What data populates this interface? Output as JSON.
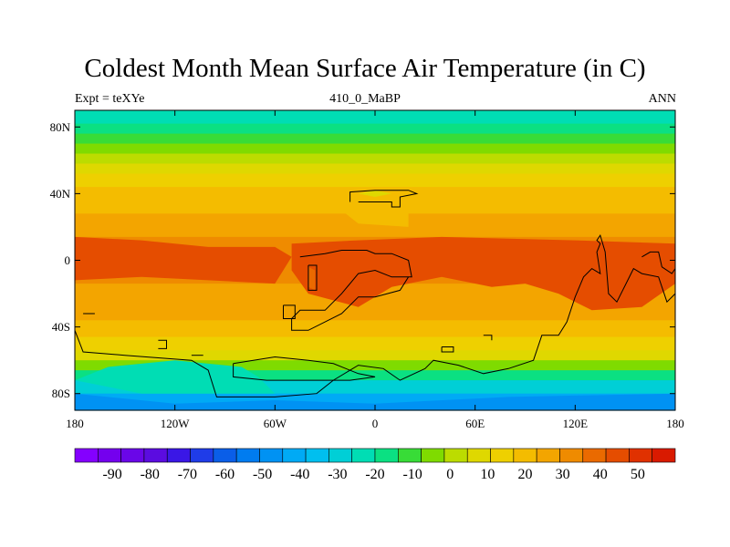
{
  "title": "Coldest Month Mean Surface Air Temperature (in C)",
  "subtitle_left": "Expt = teXYe",
  "subtitle_center": "410_0_MaBP",
  "subtitle_right": "ANN",
  "chart_data": {
    "type": "heatmap",
    "xlim": [
      -180,
      180
    ],
    "ylim": [
      -90,
      90
    ],
    "x_ticks": [
      {
        "value": -180,
        "label": "180"
      },
      {
        "value": -120,
        "label": "120W"
      },
      {
        "value": -60,
        "label": "60W"
      },
      {
        "value": 0,
        "label": "0"
      },
      {
        "value": 60,
        "label": "60E"
      },
      {
        "value": 120,
        "label": "120E"
      },
      {
        "value": 180,
        "label": "180"
      }
    ],
    "y_ticks": [
      {
        "value": 80,
        "label": "80N"
      },
      {
        "value": 40,
        "label": "40N"
      },
      {
        "value": 0,
        "label": "0"
      },
      {
        "value": -40,
        "label": "40S"
      },
      {
        "value": -80,
        "label": "80S"
      }
    ],
    "zonal_bands": [
      {
        "lat_top": 90,
        "lat_bottom": 82,
        "value": -22
      },
      {
        "lat_top": 82,
        "lat_bottom": 76,
        "value": -17
      },
      {
        "lat_top": 76,
        "lat_bottom": 70,
        "value": -12
      },
      {
        "lat_top": 70,
        "lat_bottom": 64,
        "value": -6
      },
      {
        "lat_top": 64,
        "lat_bottom": 58,
        "value": 0
      },
      {
        "lat_top": 58,
        "lat_bottom": 52,
        "value": 6
      },
      {
        "lat_top": 52,
        "lat_bottom": 44,
        "value": 12
      },
      {
        "lat_top": 44,
        "lat_bottom": 36,
        "value": 17
      },
      {
        "lat_top": 36,
        "lat_bottom": 28,
        "value": 22
      },
      {
        "lat_top": 28,
        "lat_bottom": 14,
        "value": 28
      },
      {
        "lat_top": 14,
        "lat_bottom": -14,
        "value": 33
      },
      {
        "lat_top": -14,
        "lat_bottom": -26,
        "value": 29
      },
      {
        "lat_top": -26,
        "lat_bottom": -36,
        "value": 24
      },
      {
        "lat_top": -36,
        "lat_bottom": -46,
        "value": 18
      },
      {
        "lat_top": -46,
        "lat_bottom": -54,
        "value": 12
      },
      {
        "lat_top": -54,
        "lat_bottom": -60,
        "value": 5
      },
      {
        "lat_top": -60,
        "lat_bottom": -66,
        "value": -5
      },
      {
        "lat_top": -66,
        "lat_bottom": -72,
        "value": -15
      },
      {
        "lat_top": -72,
        "lat_bottom": -80,
        "value": -28
      },
      {
        "lat_top": -80,
        "lat_bottom": -90,
        "value": -42
      }
    ],
    "regions": [
      {
        "value": 42,
        "polygon": [
          [
            -180,
            14
          ],
          [
            -140,
            12
          ],
          [
            -100,
            8
          ],
          [
            -60,
            8
          ],
          [
            -50,
            2
          ],
          [
            -60,
            -14
          ],
          [
            -100,
            -12
          ],
          [
            -140,
            -10
          ],
          [
            -180,
            -12
          ]
        ]
      },
      {
        "value": 42,
        "polygon": [
          [
            -50,
            10
          ],
          [
            -10,
            12
          ],
          [
            40,
            14
          ],
          [
            120,
            12
          ],
          [
            180,
            10
          ],
          [
            180,
            -14
          ],
          [
            160,
            -28
          ],
          [
            130,
            -30
          ],
          [
            110,
            -20
          ],
          [
            90,
            -14
          ],
          [
            70,
            -16
          ],
          [
            40,
            -10
          ],
          [
            10,
            -16
          ],
          [
            -10,
            -28
          ],
          [
            -40,
            -20
          ],
          [
            -50,
            -6
          ]
        ]
      },
      {
        "value": 38,
        "polygon": [
          [
            -40,
            -4
          ],
          [
            -36,
            -6
          ],
          [
            -36,
            -18
          ],
          [
            -40,
            -16
          ]
        ]
      },
      {
        "value": 18,
        "polygon": [
          [
            -20,
            30
          ],
          [
            0,
            32
          ],
          [
            20,
            28
          ],
          [
            20,
            20
          ],
          [
            -10,
            22
          ]
        ]
      },
      {
        "value": 6,
        "polygon": [
          [
            -10,
            40
          ],
          [
            0,
            42
          ],
          [
            10,
            40
          ],
          [
            0,
            38
          ]
        ]
      },
      {
        "value": -24,
        "polygon": [
          [
            -160,
            -64
          ],
          [
            -120,
            -60
          ],
          [
            -80,
            -64
          ],
          [
            -70,
            -70
          ],
          [
            -60,
            -80
          ],
          [
            -140,
            -80
          ],
          [
            -180,
            -72
          ]
        ]
      },
      {
        "value": -45,
        "polygon": [
          [
            -180,
            -80
          ],
          [
            -120,
            -86
          ],
          [
            -60,
            -84
          ],
          [
            0,
            -86
          ],
          [
            80,
            -82
          ],
          [
            180,
            -80
          ],
          [
            180,
            -90
          ],
          [
            -180,
            -90
          ]
        ]
      }
    ],
    "coastlines": [
      [
        [
          -15,
          35
        ],
        [
          -15,
          41
        ],
        [
          0,
          42
        ],
        [
          20,
          42
        ],
        [
          25,
          40
        ],
        [
          15,
          38
        ],
        [
          15,
          32
        ],
        [
          10,
          32
        ],
        [
          10,
          35
        ],
        [
          -10,
          35
        ]
      ],
      [
        [
          -45,
          2
        ],
        [
          -30,
          4
        ],
        [
          -20,
          6
        ],
        [
          -5,
          6
        ],
        [
          0,
          4
        ],
        [
          10,
          4
        ],
        [
          20,
          0
        ],
        [
          22,
          -10
        ],
        [
          10,
          -10
        ],
        [
          0,
          -6
        ],
        [
          -10,
          -8
        ],
        [
          -20,
          -20
        ],
        [
          -30,
          -30
        ],
        [
          -45,
          -30
        ],
        [
          -50,
          -35
        ],
        [
          -50,
          -42
        ],
        [
          -40,
          -42
        ],
        [
          -20,
          -32
        ],
        [
          -10,
          -22
        ],
        [
          0,
          -22
        ],
        [
          15,
          -18
        ],
        [
          20,
          -10
        ]
      ],
      [
        [
          -40,
          -3
        ],
        [
          -35,
          -3
        ],
        [
          -35,
          -18
        ],
        [
          -40,
          -18
        ],
        [
          -40,
          -3
        ]
      ],
      [
        [
          -55,
          -27
        ],
        [
          -48,
          -27
        ],
        [
          -48,
          -35
        ],
        [
          -55,
          -35
        ],
        [
          -55,
          -27
        ]
      ],
      [
        [
          -180,
          -42
        ],
        [
          -175,
          -55
        ],
        [
          -150,
          -57
        ],
        [
          -110,
          -60
        ],
        [
          -100,
          -66
        ],
        [
          -95,
          -82
        ],
        [
          -60,
          -82
        ],
        [
          -35,
          -80
        ],
        [
          -25,
          -72
        ],
        [
          -10,
          -63
        ],
        [
          5,
          -65
        ],
        [
          15,
          -72
        ],
        [
          30,
          -65
        ],
        [
          35,
          -60
        ],
        [
          50,
          -63
        ],
        [
          65,
          -68
        ],
        [
          80,
          -65
        ],
        [
          95,
          -60
        ],
        [
          100,
          -45
        ],
        [
          110,
          -45
        ],
        [
          115,
          -37
        ],
        [
          120,
          -22
        ],
        [
          125,
          -10
        ],
        [
          130,
          -5
        ],
        [
          135,
          -8
        ],
        [
          133,
          5
        ],
        [
          135,
          10
        ],
        [
          133,
          12
        ],
        [
          135,
          15
        ],
        [
          138,
          5
        ],
        [
          140,
          -20
        ],
        [
          145,
          -25
        ],
        [
          150,
          -15
        ],
        [
          155,
          -5
        ],
        [
          160,
          -8
        ],
        [
          170,
          -10
        ],
        [
          175,
          -25
        ],
        [
          180,
          -20
        ]
      ],
      [
        [
          160,
          2
        ],
        [
          165,
          5
        ],
        [
          170,
          5
        ],
        [
          172,
          -4
        ],
        [
          178,
          -8
        ],
        [
          180,
          -5
        ]
      ],
      [
        [
          -85,
          -62
        ],
        [
          -60,
          -58
        ],
        [
          -40,
          -60
        ],
        [
          -25,
          -62
        ],
        [
          -10,
          -68
        ],
        [
          0,
          -70
        ],
        [
          -15,
          -72
        ],
        [
          -40,
          -72
        ],
        [
          -65,
          -72
        ],
        [
          -85,
          -70
        ],
        [
          -85,
          -62
        ]
      ],
      [
        [
          -175,
          -32
        ],
        [
          -168,
          -32
        ]
      ],
      [
        [
          -130,
          -48
        ],
        [
          -125,
          -48
        ],
        [
          -125,
          -53
        ],
        [
          -130,
          -53
        ]
      ],
      [
        [
          -110,
          -57
        ],
        [
          -103,
          -57
        ]
      ],
      [
        [
          65,
          -45
        ],
        [
          70,
          -45
        ],
        [
          70,
          -48
        ]
      ],
      [
        [
          40,
          -52
        ],
        [
          47,
          -52
        ],
        [
          47,
          -55
        ],
        [
          40,
          -55
        ],
        [
          40,
          -52
        ]
      ]
    ]
  },
  "colorbar": {
    "colors": [
      "#8400ff",
      "#7400ee",
      "#6a06e8",
      "#5b0ce0",
      "#3a17e6",
      "#1f3ce8",
      "#0a5ee8",
      "#007cf0",
      "#0092f3",
      "#00aaf5",
      "#00bfef",
      "#00cfd6",
      "#00ddb4",
      "#0be082",
      "#38dc37",
      "#7fdb00",
      "#bcdc00",
      "#dfd800",
      "#eed000",
      "#f4bc00",
      "#f3a500",
      "#ef8b00",
      "#ea6a00",
      "#e54d00",
      "#e03100",
      "#d91a00"
    ],
    "labels": [
      "-90",
      "-80",
      "-70",
      "-60",
      "-50",
      "-40",
      "-30",
      "-20",
      "-10",
      "0",
      "10",
      "20",
      "30",
      "40",
      "50"
    ],
    "min": -100,
    "max": 60
  }
}
